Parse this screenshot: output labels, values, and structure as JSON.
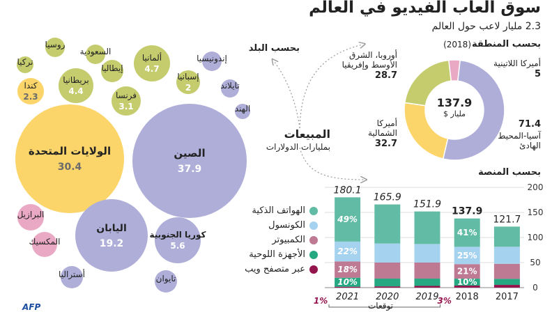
{
  "title": "سوق ألعاب الفيديو في العالم",
  "subtitle": "2.3 مليار لاعب حول العالم",
  "colors": {
    "asia": "#aeaed8",
    "na": "#fbd46a",
    "europe": "#c4cc6e",
    "latam": "#e9a8c3",
    "mobile": "#62bca5",
    "console": "#a5d2ef",
    "pc": "#bf7a93",
    "tablet": "#26a882",
    "web": "#94154d"
  },
  "center": {
    "label": "المبيعات",
    "sublabel": "بمليارات الدولارات"
  },
  "country_section": {
    "label": "بحسب البلد"
  },
  "region_section": {
    "label": "بحسب المنطقة",
    "year": "(2018)",
    "total": "137.9",
    "total_unit": "مليار $"
  },
  "platform_section": {
    "label": "بحسب المنصة"
  },
  "footer": {
    "forecast": "توقعات",
    "credit": "AFP"
  },
  "chart_data": [
    {
      "type": "bubble",
      "bubbles": [
        {
          "name": "الصين",
          "value": 37.9,
          "region": "asia"
        },
        {
          "name": "الولايات المتحدة",
          "value": 30.4,
          "region": "na"
        },
        {
          "name": "اليابان",
          "value": 19.2,
          "region": "asia"
        },
        {
          "name": "كوريا الجنوبية",
          "value": 5.6,
          "region": "asia"
        },
        {
          "name": "ألمانيا",
          "value": 4.7,
          "region": "europe"
        },
        {
          "name": "بريطانيا",
          "value": 4.4,
          "region": "europe"
        },
        {
          "name": "فرنسا",
          "value": 3.1,
          "region": "europe"
        },
        {
          "name": "كندا",
          "value": 2.3,
          "region": "na"
        },
        {
          "name": "إسبانيا",
          "value": 2,
          "region": "europe"
        },
        {
          "name": "إيطاليا",
          "value": null,
          "region": "europe"
        },
        {
          "name": "روسيا",
          "value": null,
          "region": "europe"
        },
        {
          "name": "السعودية",
          "value": null,
          "region": "europe"
        },
        {
          "name": "تركيا",
          "value": null,
          "region": "europe"
        },
        {
          "name": "إندونيسيا",
          "value": null,
          "region": "asia"
        },
        {
          "name": "تايلاند",
          "value": null,
          "region": "asia"
        },
        {
          "name": "الهند",
          "value": null,
          "region": "asia"
        },
        {
          "name": "تايوان",
          "value": null,
          "region": "asia"
        },
        {
          "name": "أستراليا",
          "value": null,
          "region": "asia"
        },
        {
          "name": "البرازيل",
          "value": null,
          "region": "latam"
        },
        {
          "name": "المكسيك",
          "value": null,
          "region": "latam"
        }
      ]
    },
    {
      "type": "pie",
      "title": "بحسب المنطقة (2018)",
      "slices": [
        {
          "name": "آسيا-المحيط الهادئ",
          "value": 71.4,
          "color_key": "asia"
        },
        {
          "name": "أميركا الشمالية",
          "value": 32.7,
          "color_key": "na"
        },
        {
          "name": "أوروبا، الشرق الأوسط وإفريقيا",
          "value": 28.7,
          "color_key": "europe"
        },
        {
          "name": "أميركا اللاتينية",
          "value": 5,
          "color_key": "latam"
        }
      ]
    },
    {
      "type": "bar",
      "stacked": true,
      "title": "بحسب المنصة",
      "categories": [
        "2017",
        "2018",
        "2019",
        "2020",
        "2021"
      ],
      "totals": [
        "121.7",
        "137.9",
        "151.9",
        "165.9",
        "180.1"
      ],
      "forecast": [
        false,
        false,
        true,
        true,
        true
      ],
      "ylim": [
        0,
        200
      ],
      "yticks": [
        0,
        50,
        100,
        150,
        200
      ],
      "series": [
        {
          "name": "عبر متصفح ويب",
          "color_key": "web",
          "values": [
            5.5,
            4.1,
            3.5,
            2.5,
            1.8
          ]
        },
        {
          "name": "الأجهزة اللوحية",
          "color_key": "tablet",
          "values": [
            12,
            13.8,
            14.5,
            15.5,
            18
          ]
        },
        {
          "name": "الكمبيوتر",
          "color_key": "pc",
          "values": [
            30,
            29,
            32,
            32,
            32.4
          ]
        },
        {
          "name": "الكونسول",
          "color_key": "console",
          "values": [
            34,
            34.5,
            37,
            38,
            39.6
          ]
        },
        {
          "name": "الهواتف الذكية",
          "color_key": "mobile",
          "values": [
            40.2,
            56.5,
            64.9,
            77.9,
            88.3
          ]
        }
      ],
      "annotations": [
        {
          "category": "2018",
          "series": "الهواتف الذكية",
          "text": "41%"
        },
        {
          "category": "2018",
          "series": "الكونسول",
          "text": "25%"
        },
        {
          "category": "2018",
          "series": "الكمبيوتر",
          "text": "21%"
        },
        {
          "category": "2018",
          "series": "الأجهزة اللوحية",
          "text": "10%"
        },
        {
          "category": "2018",
          "series": "عبر متصفح ويب",
          "text": "3%"
        },
        {
          "category": "2021",
          "series": "الهواتف الذكية",
          "text": "49%"
        },
        {
          "category": "2021",
          "series": "الكونسول",
          "text": "22%"
        },
        {
          "category": "2021",
          "series": "الكمبيوتر",
          "text": "18%"
        },
        {
          "category": "2021",
          "series": "الأجهزة اللوحية",
          "text": "10%"
        },
        {
          "category": "2021",
          "series": "عبر متصفح ويب",
          "text": "1%"
        }
      ]
    }
  ]
}
